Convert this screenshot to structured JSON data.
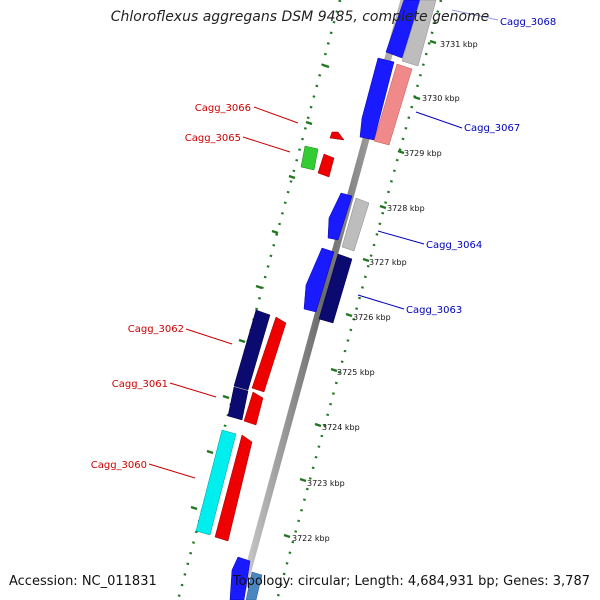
{
  "title": "Chloroflexus aggregans DSM 9485, complete genome",
  "accession": "Accession: NC_011831",
  "topology": "Topology: circular; Length: 4,684,931 bp; Genes: 3,787",
  "colors": {
    "forward_label": "#cc0000",
    "reverse_label": "#0000bb",
    "tick": "#227722"
  },
  "kbp_labels": [
    "3731 kbp",
    "3730 kbp",
    "3729 kbp",
    "3728 kbp",
    "3727 kbp",
    "3726 kbp",
    "3725 kbp",
    "3724 kbp",
    "3723 kbp",
    "3722 kbp"
  ],
  "genes": {
    "cagg_3068": "Cagg_3068",
    "cagg_3067": "Cagg_3067",
    "cagg_3066": "Cagg_3066",
    "cagg_3065": "Cagg_3065",
    "cagg_3064": "Cagg_3064",
    "cagg_3063": "Cagg_3063",
    "cagg_3062": "Cagg_3062",
    "cagg_3061": "Cagg_3061",
    "cagg_3060": "Cagg_3060"
  }
}
